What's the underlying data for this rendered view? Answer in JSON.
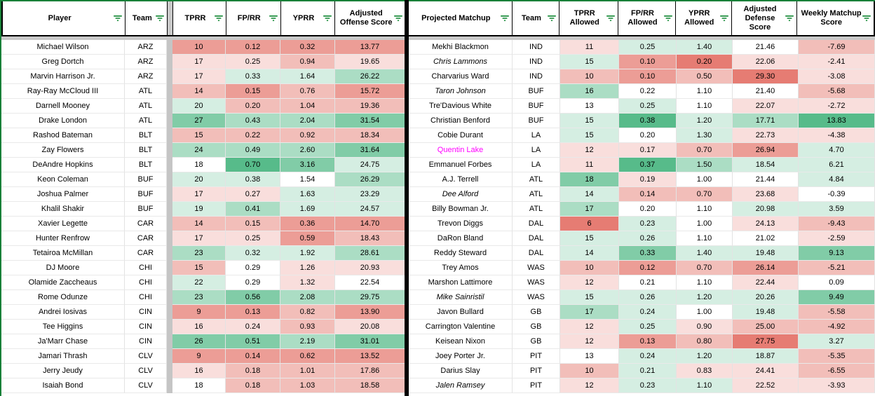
{
  "header_left": {
    "cols": [
      "Player",
      "Team",
      "TPRR",
      "FP/RR",
      "YPRR",
      "Adjusted Offense Score"
    ]
  },
  "header_right": {
    "cols": [
      "Projected Matchup",
      "Team",
      "TPRR Allowed",
      "FP/RR Allowed",
      "YPRR Allowed",
      "Adjusted Defense Score",
      "Weekly Matchup Score"
    ]
  },
  "colors": {
    "scale": {
      "-4": "#e67c73",
      "-3": "#ec9d96",
      "-2": "#f2beb9",
      "-1": "#f9dedc",
      "0": "#ffffff",
      "1": "#d5eee2",
      "2": "#abddc4",
      "3": "#81cca7",
      "4": "#57bb8a"
    },
    "filter_icon_green": "#1e8e3e",
    "frame_green": "#188038",
    "magenta_player": "#ff00ff",
    "separator_gray": "#c9c9c9",
    "divider_black": "#000000"
  },
  "left_rows": [
    {
      "player": "Michael Wilson",
      "team": "ARZ",
      "vals": [
        "10",
        "0.12",
        "0.32",
        "13.77"
      ],
      "tints": [
        -3,
        -3,
        -3,
        -3
      ]
    },
    {
      "player": "Greg Dortch",
      "team": "ARZ",
      "vals": [
        "17",
        "0.25",
        "0.94",
        "19.65"
      ],
      "tints": [
        -1,
        -1,
        -2,
        -1
      ]
    },
    {
      "player": "Marvin Harrison Jr.",
      "team": "ARZ",
      "vals": [
        "17",
        "0.33",
        "1.64",
        "26.22"
      ],
      "tints": [
        -1,
        1,
        1,
        2
      ]
    },
    {
      "player": "Ray-Ray McCloud III",
      "team": "ATL",
      "vals": [
        "14",
        "0.15",
        "0.76",
        "15.72"
      ],
      "tints": [
        -2,
        -3,
        -2,
        -3
      ]
    },
    {
      "player": "Darnell Mooney",
      "team": "ATL",
      "vals": [
        "20",
        "0.20",
        "1.04",
        "19.36"
      ],
      "tints": [
        1,
        -2,
        -2,
        -2
      ]
    },
    {
      "player": "Drake London",
      "team": "ATL",
      "vals": [
        "27",
        "0.43",
        "2.04",
        "31.54"
      ],
      "tints": [
        3,
        2,
        2,
        3
      ]
    },
    {
      "player": "Rashod Bateman",
      "team": "BLT",
      "vals": [
        "15",
        "0.22",
        "0.92",
        "18.34"
      ],
      "tints": [
        -2,
        -2,
        -2,
        -2
      ]
    },
    {
      "player": "Zay Flowers",
      "team": "BLT",
      "vals": [
        "24",
        "0.49",
        "2.60",
        "31.64"
      ],
      "tints": [
        2,
        2,
        2,
        3
      ]
    },
    {
      "player": "DeAndre Hopkins",
      "team": "BLT",
      "vals": [
        "18",
        "0.70",
        "3.16",
        "24.75"
      ],
      "tints": [
        0,
        4,
        3,
        1
      ]
    },
    {
      "player": "Keon Coleman",
      "team": "BUF",
      "vals": [
        "20",
        "0.38",
        "1.54",
        "26.29"
      ],
      "tints": [
        1,
        1,
        0,
        2
      ]
    },
    {
      "player": "Joshua Palmer",
      "team": "BUF",
      "vals": [
        "17",
        "0.27",
        "1.63",
        "23.29"
      ],
      "tints": [
        -1,
        -1,
        1,
        1
      ]
    },
    {
      "player": "Khalil Shakir",
      "team": "BUF",
      "vals": [
        "19",
        "0.41",
        "1.69",
        "24.57"
      ],
      "tints": [
        1,
        2,
        1,
        1
      ]
    },
    {
      "player": "Xavier Legette",
      "team": "CAR",
      "vals": [
        "14",
        "0.15",
        "0.36",
        "14.70"
      ],
      "tints": [
        -2,
        -2,
        -3,
        -3
      ]
    },
    {
      "player": "Hunter Renfrow",
      "team": "CAR",
      "vals": [
        "17",
        "0.25",
        "0.59",
        "18.43"
      ],
      "tints": [
        -1,
        -1,
        -3,
        -2
      ]
    },
    {
      "player": "Tetairoa McMillan",
      "team": "CAR",
      "vals": [
        "23",
        "0.32",
        "1.92",
        "28.61"
      ],
      "tints": [
        2,
        1,
        1,
        2
      ]
    },
    {
      "player": "DJ Moore",
      "team": "CHI",
      "vals": [
        "15",
        "0.29",
        "1.26",
        "20.93"
      ],
      "tints": [
        -2,
        0,
        -1,
        -1
      ]
    },
    {
      "player": "Olamide Zaccheaus",
      "team": "CHI",
      "vals": [
        "22",
        "0.29",
        "1.32",
        "22.54"
      ],
      "tints": [
        1,
        0,
        -1,
        0
      ]
    },
    {
      "player": "Rome Odunze",
      "team": "CHI",
      "vals": [
        "23",
        "0.56",
        "2.08",
        "29.75"
      ],
      "tints": [
        2,
        3,
        2,
        2
      ]
    },
    {
      "player": "Andrei Iosivas",
      "team": "CIN",
      "vals": [
        "9",
        "0.13",
        "0.82",
        "13.90"
      ],
      "tints": [
        -3,
        -3,
        -2,
        -3
      ]
    },
    {
      "player": "Tee Higgins",
      "team": "CIN",
      "vals": [
        "16",
        "0.24",
        "0.93",
        "20.08"
      ],
      "tints": [
        -1,
        -1,
        -2,
        -1
      ]
    },
    {
      "player": "Ja'Marr Chase",
      "team": "CIN",
      "vals": [
        "26",
        "0.51",
        "2.19",
        "31.01"
      ],
      "tints": [
        3,
        3,
        2,
        3
      ]
    },
    {
      "player": "Jamari Thrash",
      "team": "CLV",
      "vals": [
        "9",
        "0.14",
        "0.62",
        "13.52"
      ],
      "tints": [
        -3,
        -3,
        -3,
        -3
      ]
    },
    {
      "player": "Jerry Jeudy",
      "team": "CLV",
      "vals": [
        "16",
        "0.18",
        "1.01",
        "17.86"
      ],
      "tints": [
        -1,
        -2,
        -2,
        -2
      ]
    },
    {
      "player": "Isaiah Bond",
      "team": "CLV",
      "vals": [
        "18",
        "0.18",
        "1.03",
        "18.58"
      ],
      "tints": [
        0,
        -2,
        -2,
        -2
      ]
    }
  ],
  "right_rows": [
    {
      "player": "Mekhi Blackmon",
      "team": "IND",
      "vals": [
        "11",
        "0.25",
        "1.40",
        "21.46",
        "-7.69"
      ],
      "tints": [
        -1,
        1,
        1,
        0,
        -2
      ],
      "italic": false,
      "magenta": false
    },
    {
      "player": "Chris Lammons",
      "team": "IND",
      "vals": [
        "15",
        "0.10",
        "0.20",
        "22.06",
        "-2.41"
      ],
      "tints": [
        1,
        -3,
        -4,
        -1,
        -1
      ],
      "italic": true,
      "magenta": false
    },
    {
      "player": "Charvarius Ward",
      "team": "IND",
      "vals": [
        "10",
        "0.10",
        "0.50",
        "29.30",
        "-3.08"
      ],
      "tints": [
        -2,
        -3,
        -2,
        -4,
        -1
      ],
      "italic": false,
      "magenta": false
    },
    {
      "player": "Taron Johnson",
      "team": "BUF",
      "vals": [
        "16",
        "0.22",
        "1.10",
        "21.40",
        "-5.68"
      ],
      "tints": [
        2,
        0,
        0,
        0,
        -2
      ],
      "italic": true,
      "magenta": false
    },
    {
      "player": "Tre'Davious White",
      "team": "BUF",
      "vals": [
        "13",
        "0.25",
        "1.10",
        "22.07",
        "-2.72"
      ],
      "tints": [
        0,
        1,
        0,
        -1,
        -1
      ],
      "italic": false,
      "magenta": false
    },
    {
      "player": "Christian Benford",
      "team": "BUF",
      "vals": [
        "15",
        "0.38",
        "1.20",
        "17.71",
        "13.83"
      ],
      "tints": [
        1,
        4,
        1,
        2,
        4
      ],
      "italic": false,
      "magenta": false
    },
    {
      "player": "Cobie Durant",
      "team": "LA",
      "vals": [
        "15",
        "0.20",
        "1.30",
        "22.73",
        "-4.38"
      ],
      "tints": [
        1,
        0,
        1,
        -1,
        -1
      ],
      "italic": false,
      "magenta": false
    },
    {
      "player": "Quentin Lake",
      "team": "LA",
      "vals": [
        "12",
        "0.17",
        "0.70",
        "26.94",
        "4.70"
      ],
      "tints": [
        -1,
        -1,
        -2,
        -3,
        1
      ],
      "italic": false,
      "magenta": true
    },
    {
      "player": "Emmanuel Forbes",
      "team": "LA",
      "vals": [
        "11",
        "0.37",
        "1.50",
        "18.54",
        "6.21"
      ],
      "tints": [
        -1,
        4,
        2,
        1,
        1
      ],
      "italic": false,
      "magenta": false
    },
    {
      "player": "A.J. Terrell",
      "team": "ATL",
      "vals": [
        "18",
        "0.19",
        "1.00",
        "21.44",
        "4.84"
      ],
      "tints": [
        3,
        -1,
        0,
        0,
        1
      ],
      "italic": false,
      "magenta": false
    },
    {
      "player": "Dee Alford",
      "team": "ATL",
      "vals": [
        "14",
        "0.14",
        "0.70",
        "23.68",
        "-0.39"
      ],
      "tints": [
        1,
        -2,
        -2,
        -1,
        0
      ],
      "italic": true,
      "magenta": false
    },
    {
      "player": "Billy Bowman Jr.",
      "team": "ATL",
      "vals": [
        "17",
        "0.20",
        "1.10",
        "20.98",
        "3.59"
      ],
      "tints": [
        2,
        0,
        0,
        1,
        1
      ],
      "italic": false,
      "magenta": false
    },
    {
      "player": "Trevon Diggs",
      "team": "DAL",
      "vals": [
        "6",
        "0.23",
        "1.00",
        "24.13",
        "-9.43"
      ],
      "tints": [
        -4,
        1,
        0,
        -1,
        -2
      ],
      "italic": false,
      "magenta": false
    },
    {
      "player": "DaRon Bland",
      "team": "DAL",
      "vals": [
        "15",
        "0.26",
        "1.10",
        "21.02",
        "-2.59"
      ],
      "tints": [
        1,
        1,
        0,
        0,
        -1
      ],
      "italic": false,
      "magenta": false
    },
    {
      "player": "Reddy Steward",
      "team": "DAL",
      "vals": [
        "14",
        "0.33",
        "1.40",
        "19.48",
        "9.13"
      ],
      "tints": [
        1,
        3,
        1,
        1,
        3
      ],
      "italic": false,
      "magenta": false
    },
    {
      "player": "Trey Amos",
      "team": "WAS",
      "vals": [
        "10",
        "0.12",
        "0.70",
        "26.14",
        "-5.21"
      ],
      "tints": [
        -2,
        -3,
        -2,
        -3,
        -2
      ],
      "italic": false,
      "magenta": false
    },
    {
      "player": "Marshon Lattimore",
      "team": "WAS",
      "vals": [
        "12",
        "0.21",
        "1.10",
        "22.44",
        "0.09"
      ],
      "tints": [
        -1,
        0,
        0,
        -1,
        0
      ],
      "italic": false,
      "magenta": false
    },
    {
      "player": "Mike Sainristil",
      "team": "WAS",
      "vals": [
        "15",
        "0.26",
        "1.20",
        "20.26",
        "9.49"
      ],
      "tints": [
        1,
        1,
        1,
        1,
        3
      ],
      "italic": true,
      "magenta": false
    },
    {
      "player": "Javon Bullard",
      "team": "GB",
      "vals": [
        "17",
        "0.24",
        "1.00",
        "19.48",
        "-5.58"
      ],
      "tints": [
        2,
        1,
        0,
        1,
        -2
      ],
      "italic": false,
      "magenta": false
    },
    {
      "player": "Carrington Valentine",
      "team": "GB",
      "vals": [
        "12",
        "0.25",
        "0.90",
        "25.00",
        "-4.92"
      ],
      "tints": [
        -1,
        1,
        -1,
        -2,
        -2
      ],
      "italic": false,
      "magenta": false
    },
    {
      "player": "Keisean Nixon",
      "team": "GB",
      "vals": [
        "12",
        "0.13",
        "0.80",
        "27.75",
        "3.27"
      ],
      "tints": [
        -1,
        -3,
        -2,
        -4,
        1
      ],
      "italic": false,
      "magenta": false
    },
    {
      "player": "Joey Porter Jr.",
      "team": "PIT",
      "vals": [
        "13",
        "0.24",
        "1.20",
        "18.87",
        "-5.35"
      ],
      "tints": [
        0,
        1,
        1,
        1,
        -2
      ],
      "italic": false,
      "magenta": false
    },
    {
      "player": "Darius Slay",
      "team": "PIT",
      "vals": [
        "10",
        "0.21",
        "0.83",
        "24.41",
        "-6.55"
      ],
      "tints": [
        -2,
        1,
        -1,
        -1,
        -2
      ],
      "italic": false,
      "magenta": false
    },
    {
      "player": "Jalen Ramsey",
      "team": "PIT",
      "vals": [
        "12",
        "0.23",
        "1.10",
        "22.52",
        "-3.93"
      ],
      "tints": [
        -1,
        1,
        1,
        -1,
        -1
      ],
      "italic": true,
      "magenta": false
    }
  ]
}
